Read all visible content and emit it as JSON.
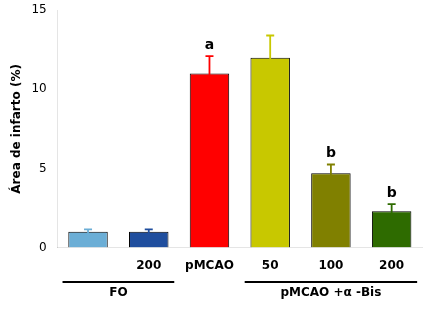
{
  "chart_data": {
    "type": "bar",
    "categories": [
      null,
      "200",
      "pMCAO",
      "50",
      "100",
      "200"
    ],
    "values": [
      1.0,
      1.0,
      11.0,
      12.0,
      4.7,
      2.3
    ],
    "errors": [
      0.15,
      0.15,
      1.1,
      1.4,
      0.55,
      0.45
    ],
    "colors": [
      "#6BAED6",
      "#1F4E9E",
      "#FF0000",
      "#C8C800",
      "#808000",
      "#2E6B00"
    ],
    "significance_labels": [
      null,
      null,
      "a",
      null,
      "b",
      "b"
    ],
    "groups": [
      {
        "label": "FO",
        "first": 0,
        "last": 1
      },
      {
        "label": "pMCAO +α -Bis",
        "first": 3,
        "last": 5
      }
    ],
    "ylabel": "Área de infarto (%)",
    "ylim": [
      0,
      15
    ],
    "yticks": [
      0,
      5,
      10,
      15
    ],
    "grid": false
  }
}
